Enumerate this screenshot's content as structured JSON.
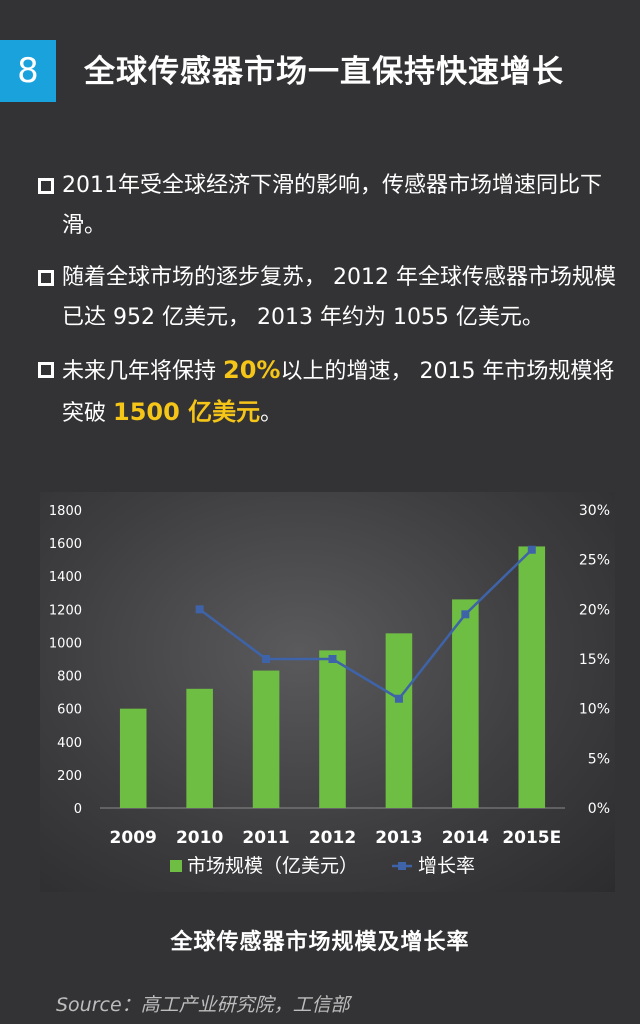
{
  "header": {
    "number": "8",
    "title": "全球传感器市场一直保持快速增长"
  },
  "bullets": [
    {
      "text": "2011年受全球经济下滑的影响，传感器市场增速同比下滑。"
    },
    {
      "text": "随着全球市场的逐步复苏， 2012 年全球传感器市场规模已达 952 亿美元， 2013 年约为 1055 亿美元。"
    },
    {
      "before": "未来几年将保持 ",
      "hl1": "20%",
      "middle": "以上的增速， 2015 年市场规模将突破 ",
      "hl2": "1500 亿美元",
      "after": "。"
    }
  ],
  "chart_data": {
    "type": "bar",
    "categories": [
      "2009",
      "2010",
      "2011",
      "2012",
      "2013",
      "2014",
      "2015E"
    ],
    "series": [
      {
        "name": "市场规模（亿美元）",
        "type": "bar",
        "axis": "left",
        "values": [
          600,
          720,
          830,
          952,
          1055,
          1260,
          1580
        ],
        "color": "#6fbe44"
      },
      {
        "name": "增长率",
        "type": "line",
        "axis": "right",
        "values": [
          null,
          20,
          15,
          15,
          11,
          19.5,
          26
        ],
        "color": "#3f63a8"
      }
    ],
    "ylim": [
      0,
      1800
    ],
    "yticks": [
      "0",
      "200",
      "400",
      "600",
      "800",
      "1000",
      "1200",
      "1400",
      "1600",
      "1800"
    ],
    "y2lim": [
      0,
      30
    ],
    "y2ticks": [
      "0%",
      "5%",
      "10%",
      "15%",
      "20%",
      "25%",
      "30%"
    ],
    "legend_position": "bottom",
    "caption": "全球传感器市场规模及增长率"
  },
  "source": "Source：高工产业研究院，工信部"
}
